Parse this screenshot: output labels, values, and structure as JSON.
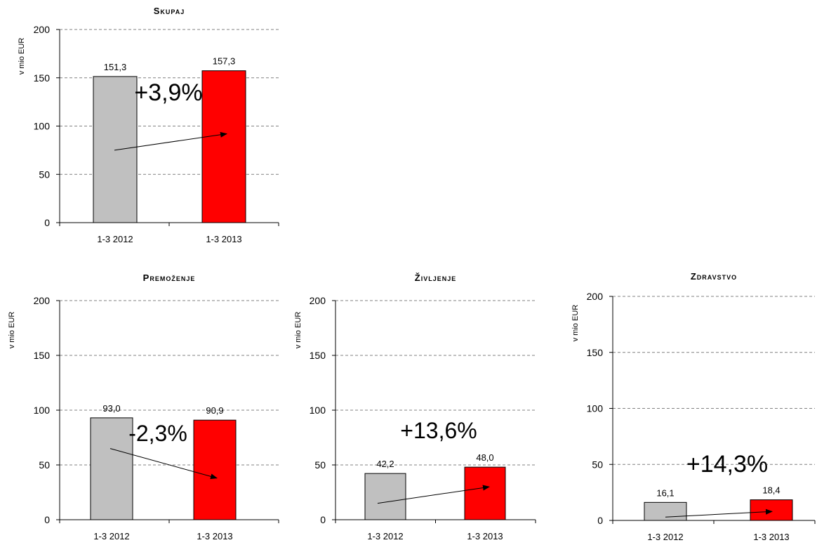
{
  "colors": {
    "bar_2012": "#c0c0c0",
    "bar_2013": "#ff0000",
    "gridline": "#808080",
    "axis": "#000000",
    "text": "#000000"
  },
  "chart_data": [
    {
      "type": "bar",
      "title": "Skupaj",
      "ylabel": "v mio EUR",
      "xlabel": "",
      "categories": [
        "1-3 2012",
        "1-3 2013"
      ],
      "values": [
        151.3,
        157.3
      ],
      "data_labels": [
        "151,3",
        "157,3"
      ],
      "yticks": [
        "0",
        "50",
        "100",
        "150",
        "200"
      ],
      "ylim": [
        0,
        200
      ],
      "grid": true,
      "annotation": "+3,9%",
      "trend_arrow": {
        "from_value": 75,
        "to_value": 92
      }
    },
    {
      "type": "bar",
      "title": "Premoženje",
      "ylabel": "v mio EUR",
      "xlabel": "",
      "categories": [
        "1-3 2012",
        "1-3 2013"
      ],
      "values": [
        93.0,
        90.9
      ],
      "data_labels": [
        "93,0",
        "90,9"
      ],
      "yticks": [
        "0",
        "50",
        "100",
        "150",
        "200"
      ],
      "ylim": [
        0,
        200
      ],
      "grid": true,
      "annotation": "-2,3%",
      "trend_arrow": {
        "from_value": 65,
        "to_value": 38
      }
    },
    {
      "type": "bar",
      "title": "Življenje",
      "ylabel": "v mio EUR",
      "xlabel": "",
      "categories": [
        "1-3 2012",
        "1-3 2013"
      ],
      "values": [
        42.2,
        48.0
      ],
      "data_labels": [
        "42,2",
        "48,0"
      ],
      "yticks": [
        "0",
        "50",
        "100",
        "150",
        "200"
      ],
      "ylim": [
        0,
        200
      ],
      "grid": true,
      "annotation": "+13,6%",
      "trend_arrow": {
        "from_value": 15,
        "to_value": 30
      }
    },
    {
      "type": "bar",
      "title": "Zdravstvo",
      "ylabel": "v mio EUR",
      "xlabel": "",
      "categories": [
        "1-3 2012",
        "1-3 2013"
      ],
      "values": [
        16.1,
        18.4
      ],
      "data_labels": [
        "16,1",
        "18,4"
      ],
      "yticks": [
        "0",
        "50",
        "100",
        "150",
        "200"
      ],
      "ylim": [
        0,
        200
      ],
      "grid": true,
      "annotation": "+14,3%",
      "trend_arrow": {
        "from_value": 3,
        "to_value": 8
      }
    }
  ]
}
